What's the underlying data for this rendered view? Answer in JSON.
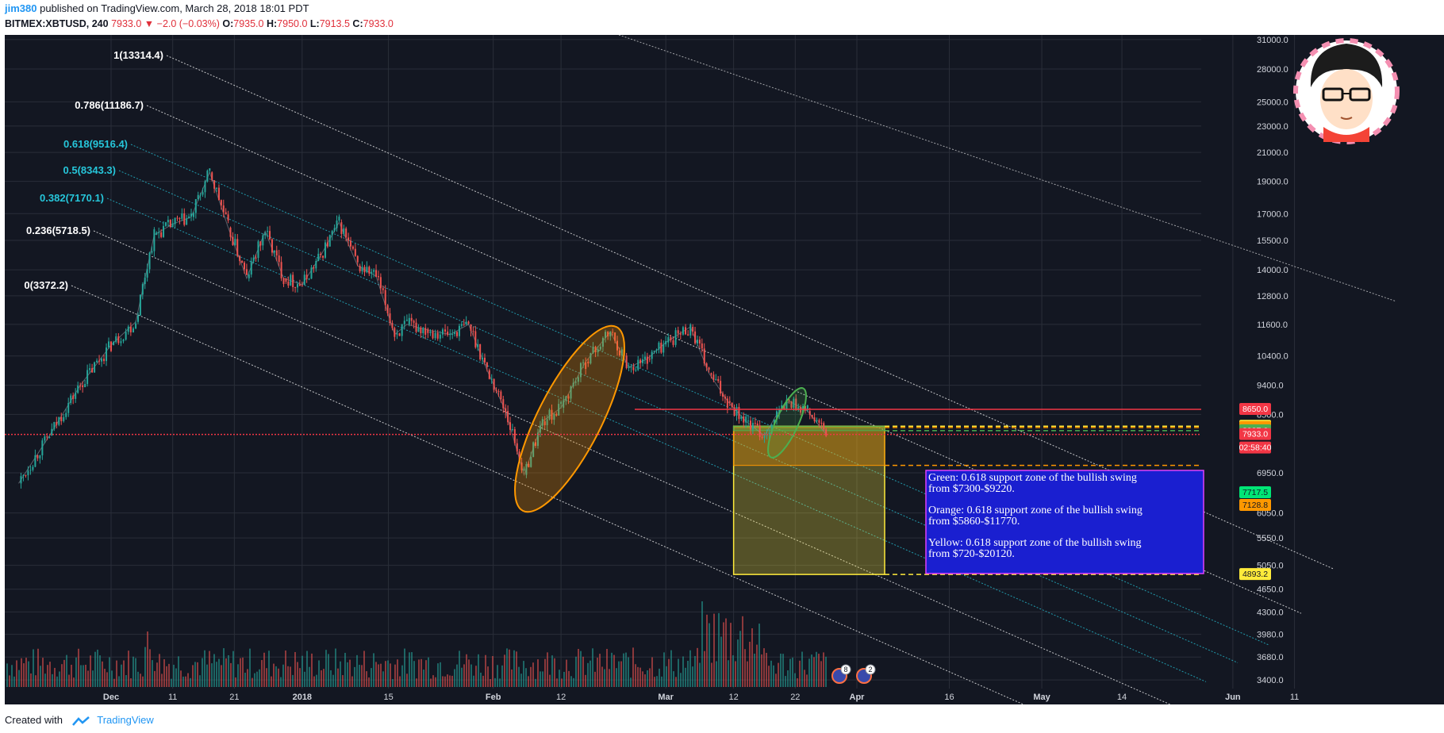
{
  "header": {
    "author": "jim380",
    "published_text": "published on TradingView.com, March 28, 2018 18:01 PDT",
    "symbol": "BITMEX:XBTUSD, 240",
    "last": "7933.0",
    "change": "−2.0 (−0.03%)",
    "o_label": "O:",
    "o": "7935.0",
    "h_label": "H:",
    "h": "7950.0",
    "l_label": "L:",
    "l": "7913.5",
    "c_label": "C:",
    "c": "7933.0"
  },
  "footer": {
    "created_with": "Created with",
    "brand": "TradingView"
  },
  "chart_data": {
    "type": "line",
    "title": "",
    "y_scale": "log",
    "ylim": [
      3300,
      31500
    ],
    "y_ticks": [
      "31000.0",
      "28000.0",
      "25000.0",
      "23000.0",
      "21000.0",
      "19000.0",
      "17000.0",
      "15500.0",
      "14000.0",
      "12800.0",
      "11600.0",
      "10400.0",
      "9400.0",
      "8500.0",
      "6950.0",
      "6050.0",
      "5550.0",
      "5050.0",
      "4650.0",
      "4300.0",
      "3980.0",
      "3680.0",
      "3400.0"
    ],
    "x_ticks": [
      "Dec",
      "11",
      "21",
      "2018",
      "15",
      "Feb",
      "12",
      "Mar",
      "12",
      "22",
      "Apr",
      "16",
      "May",
      "14",
      "Jun",
      "11"
    ],
    "series": [
      {
        "values": [
          [
            "Nov 17",
            6700
          ],
          [
            "Nov 22",
            7900
          ],
          [
            "Nov 27",
            9400
          ],
          [
            "Dec 1",
            10800
          ],
          [
            "Dec 5",
            11700
          ],
          [
            "Dec 8",
            15800
          ],
          [
            "Dec 11",
            16400
          ],
          [
            "Dec 14",
            16800
          ],
          [
            "Dec 17",
            19600
          ],
          [
            "Dec 20",
            16200
          ],
          [
            "Dec 23",
            13600
          ],
          [
            "Dec 26",
            16000
          ],
          [
            "Dec 29",
            13600
          ],
          [
            "Jan 1",
            13300
          ],
          [
            "Jan 4",
            14700
          ],
          [
            "Jan 7",
            16500
          ],
          [
            "Jan 10",
            14200
          ],
          [
            "Jan 13",
            13700
          ],
          [
            "Jan 16",
            11200
          ],
          [
            "Jan 18",
            11600
          ],
          [
            "Jan 21",
            11400
          ],
          [
            "Jan 25",
            11200
          ],
          [
            "Jan 28",
            11600
          ],
          [
            "Jan 31",
            9900
          ],
          [
            "Feb 3",
            8600
          ],
          [
            "Feb 6",
            6900
          ],
          [
            "Feb 9",
            8300
          ],
          [
            "Feb 12",
            8700
          ],
          [
            "Feb 16",
            10200
          ],
          [
            "Feb 20",
            11300
          ],
          [
            "Feb 23",
            10000
          ],
          [
            "Feb 26",
            10300
          ],
          [
            "Mar 1",
            10900
          ],
          [
            "Mar 5",
            11500
          ],
          [
            "Mar 8",
            9800
          ],
          [
            "Mar 11",
            8900
          ],
          [
            "Mar 14",
            8300
          ],
          [
            "Mar 17",
            7900
          ],
          [
            "Mar 19",
            8500
          ],
          [
            "Mar 21",
            8900
          ],
          [
            "Mar 24",
            8600
          ],
          [
            "Mar 27",
            7933
          ]
        ]
      }
    ],
    "horizontal_levels": [
      {
        "price": 8650.0,
        "label": "8650.0",
        "color": "#f23645",
        "style": "solid"
      },
      {
        "price": 8161.1,
        "label": "8161.1",
        "color": "#ffeb3b",
        "style": "dashed"
      },
      {
        "price": 8126.4,
        "label": "8126.4",
        "color": "#ff9800",
        "style": "dashed"
      },
      {
        "price": 8037.6,
        "label": "8037.6",
        "color": "#4caf50",
        "style": "dashed"
      },
      {
        "price": 7933.0,
        "label": "7933.0",
        "color": "#f23645",
        "style": "dotted"
      },
      {
        "price": 7717.5,
        "label": "7717.5",
        "color": "#00e676",
        "style": "none"
      },
      {
        "price": 7128.8,
        "label": "7128.8",
        "color": "#ff9800",
        "style": "dashed"
      },
      {
        "price": 4893.2,
        "label": "4893.2",
        "color": "#ffeb3b",
        "style": "dashed"
      }
    ],
    "countdown_label": "02:58:40",
    "fib_channel_levels": [
      {
        "label": "1(13314.4)",
        "color": "#ffffff"
      },
      {
        "label": "0.786(11186.7)",
        "color": "#ffffff"
      },
      {
        "label": "0.618(9516.4)",
        "color": "#26c6da"
      },
      {
        "label": "0.5(8343.3)",
        "color": "#26c6da"
      },
      {
        "label": "0.382(7170.1)",
        "color": "#26c6da"
      },
      {
        "label": "0.236(5718.5)",
        "color": "#ffffff"
      },
      {
        "label": "0(3372.2)",
        "color": "#ffffff"
      }
    ],
    "annotation": {
      "lines": [
        "Green: 0.618 support zone of the bullish swing",
        "from $7300-$9220.",
        "Orange: 0.618 support zone of the bullish swing",
        "from $5860-$11770.",
        "Yellow: 0.618 support zone of the bullish swing",
        "from $720-$20120."
      ]
    },
    "event_badges": [
      "8",
      "2"
    ],
    "colors": {
      "background": "#131722",
      "up": "#26a69a",
      "down": "#ef5350",
      "grid": "#2a2e39"
    }
  }
}
